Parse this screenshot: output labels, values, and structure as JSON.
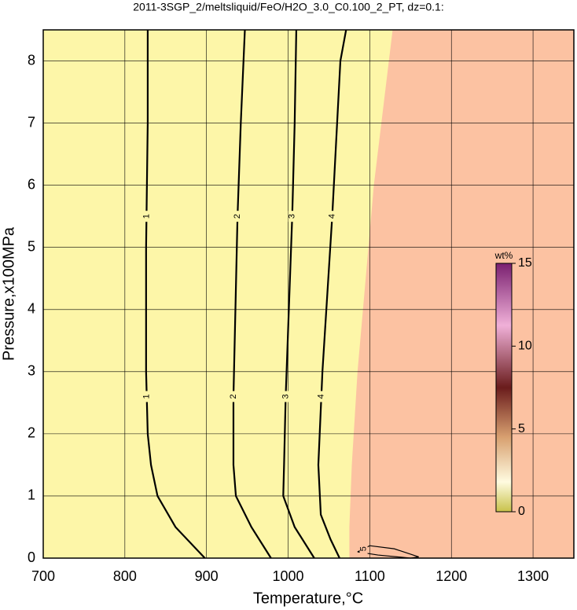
{
  "chart_data": {
    "type": "contour",
    "title": "2011-3SGP_2/meltsliquid/FeO/H2O_3.0_C0.100_2_PT, dz=0.1:",
    "xlabel": "Temperature,°C",
    "ylabel": "Pressure,x100MPa",
    "xlim": [
      700,
      1350
    ],
    "ylim": [
      0,
      8.5
    ],
    "xticks": [
      700,
      800,
      900,
      1000,
      1100,
      1200,
      1300
    ],
    "yticks": [
      0,
      1,
      2,
      3,
      4,
      5,
      6,
      7,
      8
    ],
    "grid": true,
    "low_color": "#fdf6a8",
    "high_color": "#fcc2a2",
    "boundary": {
      "x": [
        1128,
        1105,
        1085,
        1078,
        1075,
        1075
      ],
      "y": [
        8.5,
        6,
        3,
        1.5,
        0.5,
        0
      ]
    },
    "contours": [
      {
        "level": 1,
        "x": [
          828,
          828,
          826,
          826,
          828,
          832,
          840,
          862,
          898
        ],
        "y": [
          8.5,
          7,
          5,
          3,
          2,
          1.5,
          1,
          0.5,
          0
        ]
      },
      {
        "level": 2,
        "x": [
          947,
          942,
          938,
          933,
          933,
          936,
          955,
          979
        ],
        "y": [
          8.5,
          7,
          5.5,
          2.6,
          1.5,
          1,
          0.5,
          0
        ]
      },
      {
        "level": 3,
        "x": [
          1010,
          1008,
          1005,
          997,
          995,
          994,
          1008,
          1032
        ],
        "y": [
          8.5,
          7,
          5.5,
          2.6,
          1.5,
          1,
          0.5,
          0
        ]
      },
      {
        "level": 4,
        "x": [
          1071,
          1064,
          1054,
          1042,
          1037,
          1040,
          1052,
          1063
        ],
        "y": [
          8.5,
          8,
          5.5,
          3,
          1.5,
          0.7,
          0.3,
          0
        ]
      },
      {
        "level": 5,
        "x": [
          1085,
          1100,
          1130,
          1160,
          1150,
          1110,
          1085
        ],
        "y": [
          0.1,
          0.2,
          0.15,
          0.02,
          0,
          0.05,
          0.1
        ]
      }
    ],
    "colorbar": {
      "label": "wt%",
      "lim": [
        0,
        15
      ],
      "ticks": [
        0,
        5,
        10,
        15
      ]
    }
  }
}
